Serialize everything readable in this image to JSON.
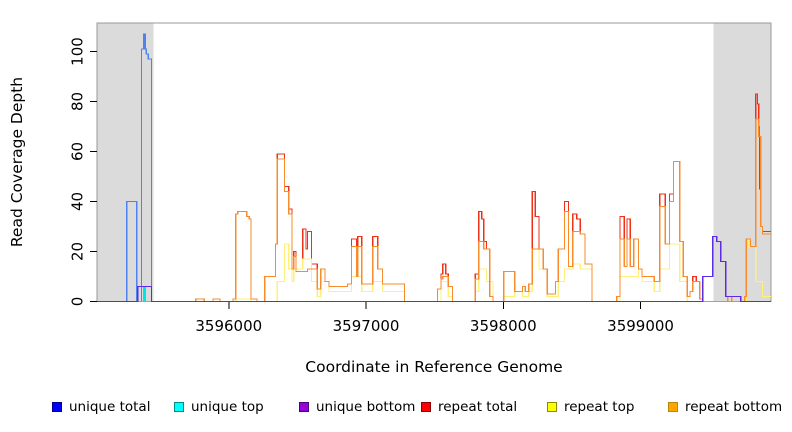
{
  "chart_data": {
    "type": "line",
    "line_style": "step",
    "title": "",
    "xlabel": "Coordinate in Reference Genome",
    "ylabel": "Read Coverage Depth",
    "xlim": [
      3595040,
      3599950
    ],
    "ylim": [
      0,
      110
    ],
    "grid": false,
    "legend_position": "bottom",
    "x_ticks": [
      3596000,
      3597000,
      3598000,
      3599000
    ],
    "x_tick_labels": [
      "3596000",
      "3597000",
      "3598000",
      "3599000"
    ],
    "y_ticks": [
      0,
      20,
      40,
      60,
      80,
      100
    ],
    "y_tick_labels": [
      "0",
      "20",
      "40",
      "60",
      "80",
      "100"
    ],
    "shaded_regions": [
      {
        "start": 3595040,
        "end": 3595450,
        "color": "#dbdbdb"
      },
      {
        "start": 3599532,
        "end": 3599950,
        "color": "#dbdbdb"
      }
    ],
    "series": [
      {
        "name": "repeat total",
        "line_color": "#ee3018",
        "steps": [
          [
            3595040,
            0
          ],
          [
            3595760,
            1
          ],
          [
            3595820,
            0
          ],
          [
            3595885,
            1
          ],
          [
            3595935,
            0
          ],
          [
            3596030,
            1
          ],
          [
            3596050,
            35
          ],
          [
            3596065,
            36
          ],
          [
            3596130,
            34
          ],
          [
            3596148,
            33
          ],
          [
            3596162,
            1
          ],
          [
            3596205,
            0
          ],
          [
            3596262,
            10
          ],
          [
            3596340,
            23
          ],
          [
            3596352,
            59
          ],
          [
            3596405,
            46
          ],
          [
            3596437,
            37
          ],
          [
            3596460,
            13
          ],
          [
            3596472,
            20
          ],
          [
            3596490,
            13
          ],
          [
            3596538,
            29
          ],
          [
            3596562,
            21
          ],
          [
            3596573,
            28
          ],
          [
            3596602,
            15
          ],
          [
            3596645,
            5
          ],
          [
            3596670,
            13
          ],
          [
            3596700,
            8
          ],
          [
            3596730,
            6
          ],
          [
            3596865,
            7
          ],
          [
            3596894,
            25
          ],
          [
            3596930,
            10
          ],
          [
            3596940,
            26
          ],
          [
            3596968,
            7
          ],
          [
            3597048,
            26
          ],
          [
            3597085,
            13
          ],
          [
            3597120,
            7
          ],
          [
            3597280,
            0
          ],
          [
            3597520,
            5
          ],
          [
            3597545,
            11
          ],
          [
            3597558,
            15
          ],
          [
            3597580,
            11
          ],
          [
            3597598,
            6
          ],
          [
            3597630,
            0
          ],
          [
            3597795,
            11
          ],
          [
            3597820,
            36
          ],
          [
            3597842,
            33
          ],
          [
            3597856,
            24
          ],
          [
            3597877,
            21
          ],
          [
            3597900,
            2
          ],
          [
            3597925,
            0
          ],
          [
            3598002,
            12
          ],
          [
            3598082,
            4
          ],
          [
            3598140,
            6
          ],
          [
            3598160,
            4
          ],
          [
            3598185,
            7
          ],
          [
            3598210,
            44
          ],
          [
            3598232,
            34
          ],
          [
            3598260,
            21
          ],
          [
            3598290,
            13
          ],
          [
            3598320,
            3
          ],
          [
            3598380,
            8
          ],
          [
            3598400,
            21
          ],
          [
            3598445,
            40
          ],
          [
            3598475,
            14
          ],
          [
            3598505,
            35
          ],
          [
            3598535,
            33
          ],
          [
            3598560,
            27
          ],
          [
            3598595,
            15
          ],
          [
            3598645,
            0
          ],
          [
            3598825,
            2
          ],
          [
            3598850,
            34
          ],
          [
            3598880,
            14
          ],
          [
            3598900,
            33
          ],
          [
            3598925,
            14
          ],
          [
            3598950,
            25
          ],
          [
            3598985,
            13
          ],
          [
            3599010,
            10
          ],
          [
            3599100,
            8
          ],
          [
            3599139,
            43
          ],
          [
            3599180,
            23
          ],
          [
            3599210,
            43
          ],
          [
            3599240,
            56
          ],
          [
            3599285,
            24
          ],
          [
            3599310,
            10
          ],
          [
            3599340,
            2
          ],
          [
            3599360,
            4
          ],
          [
            3599380,
            10
          ],
          [
            3599405,
            8
          ],
          [
            3599430,
            1
          ],
          [
            3599450,
            0
          ],
          [
            3599634,
            2
          ],
          [
            3599663,
            0
          ],
          [
            3599758,
            2
          ],
          [
            3599770,
            25
          ],
          [
            3599800,
            22
          ],
          [
            3599838,
            83
          ],
          [
            3599852,
            79
          ],
          [
            3599860,
            70
          ],
          [
            3599866,
            45
          ],
          [
            3599875,
            30
          ],
          [
            3599888,
            28
          ]
        ]
      },
      {
        "name": "repeat top",
        "line_color": "#fff07a",
        "steps": [
          [
            3595040,
            0
          ],
          [
            3596050,
            1
          ],
          [
            3596162,
            0
          ],
          [
            3596352,
            8
          ],
          [
            3596405,
            23
          ],
          [
            3596437,
            13
          ],
          [
            3596460,
            8
          ],
          [
            3596472,
            13
          ],
          [
            3596538,
            17
          ],
          [
            3596602,
            8
          ],
          [
            3596645,
            2
          ],
          [
            3596670,
            8
          ],
          [
            3596730,
            4
          ],
          [
            3596865,
            4
          ],
          [
            3596894,
            10
          ],
          [
            3596968,
            4
          ],
          [
            3597048,
            8
          ],
          [
            3597120,
            4
          ],
          [
            3597280,
            0
          ],
          [
            3597545,
            8
          ],
          [
            3597598,
            2
          ],
          [
            3597630,
            0
          ],
          [
            3597795,
            4
          ],
          [
            3597820,
            13
          ],
          [
            3597877,
            8
          ],
          [
            3597925,
            0
          ],
          [
            3598002,
            2
          ],
          [
            3598082,
            4
          ],
          [
            3598140,
            2
          ],
          [
            3598185,
            4
          ],
          [
            3598210,
            21
          ],
          [
            3598260,
            13
          ],
          [
            3598320,
            2
          ],
          [
            3598400,
            8
          ],
          [
            3598445,
            13
          ],
          [
            3598505,
            15
          ],
          [
            3598560,
            13
          ],
          [
            3598645,
            0
          ],
          [
            3598850,
            10
          ],
          [
            3598925,
            10
          ],
          [
            3598985,
            13
          ],
          [
            3599010,
            8
          ],
          [
            3599100,
            4
          ],
          [
            3599139,
            13
          ],
          [
            3599210,
            23
          ],
          [
            3599285,
            8
          ],
          [
            3599340,
            0
          ],
          [
            3599770,
            25
          ],
          [
            3599787,
            22
          ],
          [
            3599838,
            8
          ],
          [
            3599866,
            8
          ],
          [
            3599888,
            2
          ]
        ]
      },
      {
        "name": "repeat bottom",
        "line_color": "#f98b2b",
        "steps": [
          [
            3595040,
            0
          ],
          [
            3595760,
            1
          ],
          [
            3595820,
            0
          ],
          [
            3595885,
            1
          ],
          [
            3595935,
            0
          ],
          [
            3596030,
            1
          ],
          [
            3596050,
            35
          ],
          [
            3596065,
            36
          ],
          [
            3596130,
            34
          ],
          [
            3596148,
            33
          ],
          [
            3596162,
            1
          ],
          [
            3596205,
            0
          ],
          [
            3596262,
            10
          ],
          [
            3596340,
            23
          ],
          [
            3596352,
            57
          ],
          [
            3596405,
            44
          ],
          [
            3596437,
            35
          ],
          [
            3596460,
            13
          ],
          [
            3596472,
            18
          ],
          [
            3596490,
            12
          ],
          [
            3596538,
            12
          ],
          [
            3596573,
            13
          ],
          [
            3596645,
            5
          ],
          [
            3596670,
            13
          ],
          [
            3596700,
            8
          ],
          [
            3596730,
            6
          ],
          [
            3596865,
            7
          ],
          [
            3596894,
            22
          ],
          [
            3596930,
            10
          ],
          [
            3596940,
            22
          ],
          [
            3596968,
            7
          ],
          [
            3597048,
            22
          ],
          [
            3597085,
            13
          ],
          [
            3597120,
            7
          ],
          [
            3597280,
            0
          ],
          [
            3597520,
            5
          ],
          [
            3597545,
            9
          ],
          [
            3597558,
            10
          ],
          [
            3597598,
            6
          ],
          [
            3597630,
            0
          ],
          [
            3597795,
            9
          ],
          [
            3597820,
            24
          ],
          [
            3597856,
            21
          ],
          [
            3597900,
            2
          ],
          [
            3597925,
            0
          ],
          [
            3598002,
            12
          ],
          [
            3598082,
            4
          ],
          [
            3598140,
            6
          ],
          [
            3598160,
            4
          ],
          [
            3598185,
            7
          ],
          [
            3598210,
            21
          ],
          [
            3598290,
            13
          ],
          [
            3598320,
            3
          ],
          [
            3598380,
            8
          ],
          [
            3598400,
            21
          ],
          [
            3598445,
            36
          ],
          [
            3598475,
            14
          ],
          [
            3598505,
            28
          ],
          [
            3598560,
            27
          ],
          [
            3598595,
            15
          ],
          [
            3598645,
            0
          ],
          [
            3598825,
            2
          ],
          [
            3598850,
            25
          ],
          [
            3598880,
            14
          ],
          [
            3598900,
            25
          ],
          [
            3598925,
            14
          ],
          [
            3598950,
            25
          ],
          [
            3598985,
            13
          ],
          [
            3599010,
            10
          ],
          [
            3599100,
            8
          ],
          [
            3599139,
            38
          ],
          [
            3599180,
            23
          ],
          [
            3599210,
            40
          ],
          [
            3599240,
            56
          ],
          [
            3599285,
            24
          ],
          [
            3599310,
            10
          ],
          [
            3599340,
            2
          ],
          [
            3599360,
            4
          ],
          [
            3599380,
            8
          ],
          [
            3599405,
            8
          ],
          [
            3599430,
            1
          ],
          [
            3599450,
            0
          ],
          [
            3599634,
            2
          ],
          [
            3599663,
            0
          ],
          [
            3599758,
            2
          ],
          [
            3599770,
            25
          ],
          [
            3599800,
            22
          ],
          [
            3599838,
            73
          ],
          [
            3599860,
            66
          ],
          [
            3599875,
            30
          ],
          [
            3599888,
            27
          ]
        ]
      },
      {
        "name": "unique total",
        "line_color": "#4d82f0",
        "steps": [
          [
            3595040,
            0
          ],
          [
            3595257,
            40
          ],
          [
            3595330,
            0
          ],
          [
            3595364,
            101
          ],
          [
            3595381,
            107
          ],
          [
            3595392,
            101
          ],
          [
            3595399,
            99
          ],
          [
            3595413,
            97
          ],
          [
            3595436,
            0
          ],
          [
            3599452,
            10
          ],
          [
            3599525,
            26
          ],
          [
            3599554,
            24
          ],
          [
            3599583,
            16
          ],
          [
            3599620,
            2
          ],
          [
            3599729,
            0
          ]
        ]
      },
      {
        "name": "unique top",
        "line_color": "#00e5e5",
        "steps": [
          [
            3595040,
            0
          ],
          [
            3595381,
            6
          ],
          [
            3595392,
            0
          ]
        ]
      },
      {
        "name": "unique bottom",
        "line_color": "#5b2be8",
        "steps": [
          [
            3595040,
            0
          ],
          [
            3595337,
            6
          ],
          [
            3595436,
            0
          ],
          [
            3599452,
            10
          ],
          [
            3599525,
            26
          ],
          [
            3599554,
            24
          ],
          [
            3599583,
            16
          ],
          [
            3599620,
            2
          ],
          [
            3599729,
            0
          ]
        ]
      }
    ]
  },
  "legend": {
    "items": [
      {
        "label": "unique total",
        "fill": "#0000ff",
        "border": "#00008b"
      },
      {
        "label": "unique top",
        "fill": "#00ffff",
        "border": "#008b8b"
      },
      {
        "label": "unique bottom",
        "fill": "#9400d3",
        "border": "#4b0082"
      },
      {
        "label": "repeat total",
        "fill": "#ff0000",
        "border": "#8b0000"
      },
      {
        "label": "repeat top",
        "fill": "#ffff00",
        "border": "#8b8b00"
      },
      {
        "label": "repeat bottom",
        "fill": "#ffa500",
        "border": "#b8860b"
      }
    ]
  },
  "axes": {
    "x_label": "Coordinate in Reference Genome",
    "y_label": "Read Coverage Depth"
  }
}
